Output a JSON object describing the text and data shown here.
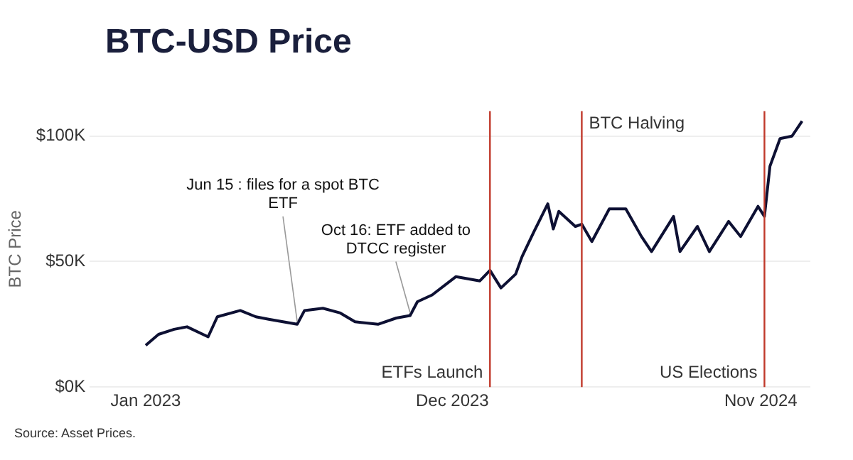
{
  "chart_data": {
    "type": "line",
    "title": "BTC-USD Price",
    "ylabel": "BTC Price",
    "x": [
      "2023-01-01",
      "2023-01-15",
      "2023-02-01",
      "2023-02-15",
      "2023-03-10",
      "2023-03-20",
      "2023-04-14",
      "2023-05-01",
      "2023-05-15",
      "2023-06-15",
      "2023-06-23",
      "2023-07-13",
      "2023-08-01",
      "2023-08-17",
      "2023-09-11",
      "2023-10-01",
      "2023-10-16",
      "2023-10-24",
      "2023-11-09",
      "2023-12-05",
      "2023-12-31",
      "2024-01-11",
      "2024-01-23",
      "2024-02-08",
      "2024-02-15",
      "2024-02-28",
      "2024-03-14",
      "2024-03-20",
      "2024-03-26",
      "2024-04-13",
      "2024-04-20",
      "2024-05-01",
      "2024-05-20",
      "2024-06-07",
      "2024-06-24",
      "2024-07-05",
      "2024-07-29",
      "2024-08-05",
      "2024-08-24",
      "2024-09-06",
      "2024-09-27",
      "2024-10-10",
      "2024-10-29",
      "2024-11-05",
      "2024-11-11",
      "2024-11-13",
      "2024-11-22",
      "2024-12-05",
      "2024-12-16"
    ],
    "series": [
      {
        "color": "#0d1033",
        "values": [
          16.6,
          21,
          23,
          24,
          20,
          28,
          30.5,
          28,
          27,
          25,
          30.5,
          31.4,
          29.5,
          26,
          25,
          27.5,
          28.5,
          34,
          36.7,
          44,
          42.3,
          46.5,
          39.5,
          45,
          52,
          62,
          73,
          63,
          70,
          64,
          64.9,
          58,
          71,
          71,
          60,
          54,
          68,
          54,
          64,
          54,
          66,
          60,
          72,
          68,
          88,
          90,
          99,
          100,
          106
        ]
      }
    ],
    "xlim": [
      "2022-11-01",
      "2024-12-25"
    ],
    "xticks": [
      {
        "value": "2023-01-01",
        "label": "Jan 2023"
      },
      {
        "value": "2023-12-01",
        "label": "Dec 2023"
      },
      {
        "value": "2024-11-01",
        "label": "Nov 2024"
      }
    ],
    "ylim": [
      0,
      110
    ],
    "yticks": [
      {
        "value": 0,
        "label": "$0K"
      },
      {
        "value": 50,
        "label": "$50K"
      },
      {
        "value": 100,
        "label": "$100K"
      }
    ],
    "grid": "y",
    "legend": false,
    "marker": "none",
    "line_style": "solid",
    "ref_lines": [
      {
        "axis": "x",
        "value": "2024-01-11",
        "label": "ETFs Launch",
        "color": "#c0392b"
      },
      {
        "axis": "x",
        "value": "2024-04-20",
        "label": "BTC Halving",
        "color": "#c0392b"
      },
      {
        "axis": "x",
        "value": "2024-11-05",
        "label": "US Elections",
        "color": "#c0392b"
      }
    ],
    "annotations": [
      {
        "text": "Jun 15 : files for a spot BTC ETF",
        "x": "2023-06-15",
        "y": 25
      },
      {
        "text": "Oct 16: ETF added to DTCC register",
        "x": "2023-10-16",
        "y": 28.5
      },
      "Source: Asset Prices."
    ]
  }
}
